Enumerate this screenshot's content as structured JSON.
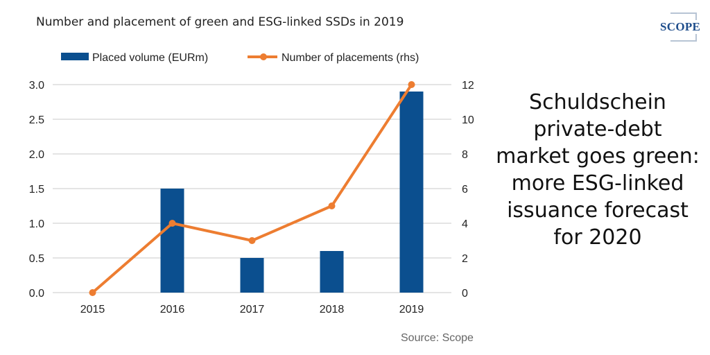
{
  "title": "Number and placement of green and ESG-linked SSDs in 2019",
  "headline": "Schuldschein private-debt market goes green: more ESG-linked issuance forecast for 2020",
  "source": "Source: Scope",
  "logo": {
    "text": "SCOPE",
    "color": "#1f4e8c"
  },
  "chart_data": {
    "type": "bar",
    "title": "Number and placement of green and ESG-linked SSDs in 2019",
    "categories": [
      "2015",
      "2016",
      "2017",
      "2018",
      "2019"
    ],
    "series": [
      {
        "name": "Placed volume (EURm)",
        "type": "bar",
        "axis": "left",
        "color": "#0b4f8f",
        "values": [
          0.0,
          1.5,
          0.5,
          0.6,
          2.9
        ]
      },
      {
        "name": "Number of placements (rhs)",
        "type": "line",
        "axis": "right",
        "color": "#ed7d31",
        "values": [
          0,
          4,
          3,
          5,
          12
        ]
      }
    ],
    "y_left": {
      "min": 0,
      "max": 3.0,
      "ticks": [
        "0.0",
        "0.5",
        "1.0",
        "1.5",
        "2.0",
        "2.5",
        "3.0"
      ]
    },
    "y_right": {
      "min": 0,
      "max": 12,
      "ticks": [
        "0",
        "2",
        "4",
        "6",
        "8",
        "10",
        "12"
      ]
    },
    "grid": true,
    "legend": "top"
  }
}
